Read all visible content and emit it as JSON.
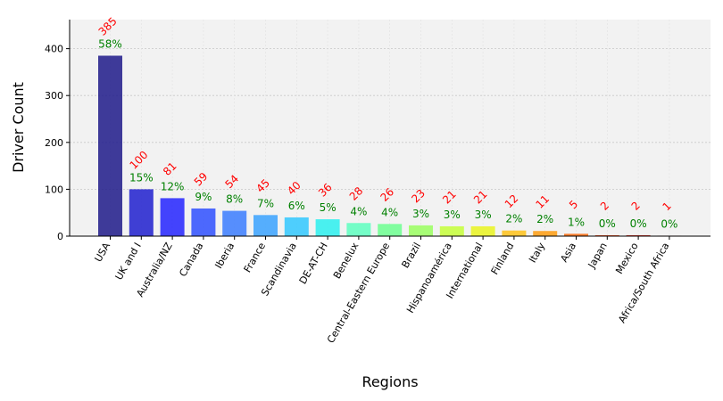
{
  "chart_data": {
    "type": "bar",
    "title": "",
    "xlabel": "Regions",
    "ylabel": "Driver Count",
    "ylim": [
      0,
      462
    ],
    "yticks": [
      0,
      100,
      200,
      300,
      400
    ],
    "grid": true,
    "legend": "none",
    "categories": [
      "USA",
      "UK and I",
      "Australia/NZ",
      "Canada",
      "Iberia",
      "France",
      "Scandinavia",
      "DE-AT-CH",
      "Benelux",
      "Central-Eastern Europe",
      "Brazil",
      "Hispanoamérica",
      "International",
      "Finland",
      "Italy",
      "Asia",
      "Japan",
      "Mexico",
      "Africa/South Africa"
    ],
    "values": [
      385,
      100,
      81,
      59,
      54,
      45,
      40,
      36,
      28,
      26,
      23,
      21,
      21,
      12,
      11,
      5,
      2,
      2,
      1
    ],
    "count_labels": [
      "385",
      "100",
      "81",
      "59",
      "54",
      "45",
      "40",
      "36",
      "28",
      "26",
      "23",
      "21",
      "21",
      "12",
      "11",
      "5",
      "2",
      "2",
      "1"
    ],
    "percent_labels": [
      "58%",
      "15%",
      "12%",
      "9%",
      "8%",
      "7%",
      "6%",
      "5%",
      "4%",
      "4%",
      "3%",
      "3%",
      "3%",
      "2%",
      "2%",
      "1%",
      "0%",
      "0%",
      "0%"
    ],
    "bar_colors": [
      "#1f1a8a",
      "#2020cf",
      "#2424ff",
      "#2f50ff",
      "#3b7cff",
      "#3aa2ff",
      "#31c8ff",
      "#2cf0ef",
      "#5effc0",
      "#6dff91",
      "#9aff60",
      "#c6ff3a",
      "#eaf520",
      "#ffc21a",
      "#ff9c10",
      "#ff6a0a",
      "#f03a06",
      "#d41203",
      "#9e0500"
    ],
    "count_label_color": "#ff0000",
    "percent_label_color": "#008000",
    "plot_background": "#f2f2f2"
  }
}
